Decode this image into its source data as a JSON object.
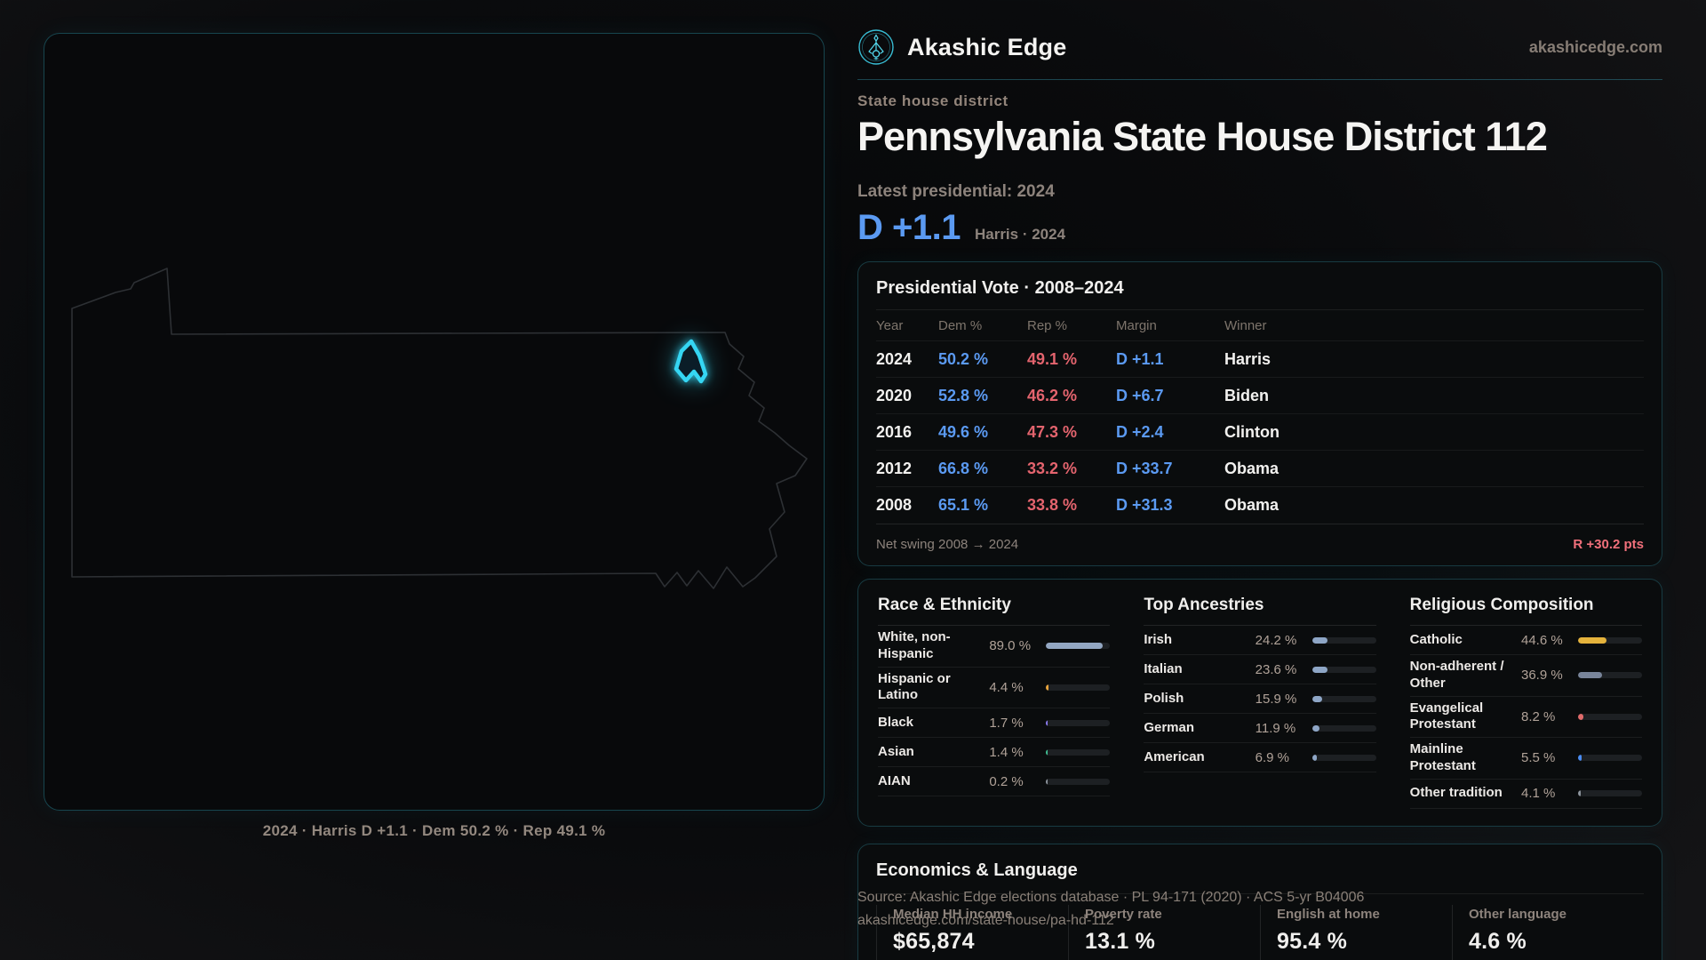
{
  "brand": {
    "name": "Akashic Edge",
    "domain": "akashicedge.com"
  },
  "header": {
    "kicker": "State house district",
    "title": "Pennsylvania State House District 112",
    "latest_label": "Latest presidential: 2024",
    "margin_value": "D +1.1",
    "margin_context": "Harris · 2024"
  },
  "map": {
    "caption": "2024 · Harris D +1.1 · Dem 50.2 % · Rep 49.1 %",
    "state_name": "Pennsylvania",
    "district_color": "#35d6f3",
    "outline_color": "#2d3034"
  },
  "presidential": {
    "title": "Presidential Vote · 2008–2024",
    "columns": [
      "Year",
      "Dem %",
      "Rep %",
      "Margin",
      "Winner"
    ],
    "rows": [
      {
        "year": "2024",
        "dem": "50.2 %",
        "rep": "49.1 %",
        "margin": "D +1.1",
        "winner": "Harris"
      },
      {
        "year": "2020",
        "dem": "52.8 %",
        "rep": "46.2 %",
        "margin": "D +6.7",
        "winner": "Biden"
      },
      {
        "year": "2016",
        "dem": "49.6 %",
        "rep": "47.3 %",
        "margin": "D +2.4",
        "winner": "Clinton"
      },
      {
        "year": "2012",
        "dem": "66.8 %",
        "rep": "33.2 %",
        "margin": "D +33.7",
        "winner": "Obama"
      },
      {
        "year": "2008",
        "dem": "65.1 %",
        "rep": "33.8 %",
        "margin": "D +31.3",
        "winner": "Obama"
      }
    ],
    "net_swing_label": "Net swing 2008 → 2024",
    "net_swing_value": "R +30.2 pts"
  },
  "race": {
    "title": "Race & Ethnicity",
    "rows": [
      {
        "label": "White, non-Hispanic",
        "value": "89.0 %",
        "pct": 89.0,
        "color": "#93a7c2"
      },
      {
        "label": "Hispanic or Latino",
        "value": "4.4 %",
        "pct": 4.4,
        "color": "#e7a33c"
      },
      {
        "label": "Black",
        "value": "1.7 %",
        "pct": 1.7,
        "color": "#8b7bf0"
      },
      {
        "label": "Asian",
        "value": "1.4 %",
        "pct": 1.4,
        "color": "#3fbf93"
      },
      {
        "label": "AIAN",
        "value": "0.2 %",
        "pct": 0.2,
        "color": "#8d949c"
      }
    ]
  },
  "ancestries": {
    "title": "Top Ancestries",
    "rows": [
      {
        "label": "Irish",
        "value": "24.2 %",
        "pct": 24.2,
        "color": "#8ea6c6"
      },
      {
        "label": "Italian",
        "value": "23.6 %",
        "pct": 23.6,
        "color": "#8ea6c6"
      },
      {
        "label": "Polish",
        "value": "15.9 %",
        "pct": 15.9,
        "color": "#8ea6c6"
      },
      {
        "label": "German",
        "value": "11.9 %",
        "pct": 11.9,
        "color": "#8ea6c6"
      },
      {
        "label": "American",
        "value": "6.9 %",
        "pct": 6.9,
        "color": "#8ea6c6"
      }
    ]
  },
  "religion": {
    "title": "Religious Composition",
    "rows": [
      {
        "label": "Catholic",
        "value": "44.6 %",
        "pct": 44.6,
        "color": "#e5b33c"
      },
      {
        "label": "Non-adherent / Other",
        "value": "36.9 %",
        "pct": 36.9,
        "color": "#79859a"
      },
      {
        "label": "Evangelical Protestant",
        "value": "8.2 %",
        "pct": 8.2,
        "color": "#e06b6b"
      },
      {
        "label": "Mainline Protestant",
        "value": "5.5 %",
        "pct": 5.5,
        "color": "#4a8cf2"
      },
      {
        "label": "Other tradition",
        "value": "4.1 %",
        "pct": 4.1,
        "color": "#8d949c"
      }
    ]
  },
  "economics": {
    "title": "Economics & Language",
    "stats": [
      {
        "label": "Median HH income",
        "value": "$65,874"
      },
      {
        "label": "Poverty rate",
        "value": "13.1 %"
      },
      {
        "label": "English at home",
        "value": "95.4 %"
      },
      {
        "label": "Other language",
        "value": "4.6 %"
      }
    ]
  },
  "source": {
    "line1": "Source: Akashic Edge elections database · PL 94-171 (2020) · ACS 5-yr B04006",
    "line2": "akashicedge.com/state-house/pa-hd-112"
  }
}
